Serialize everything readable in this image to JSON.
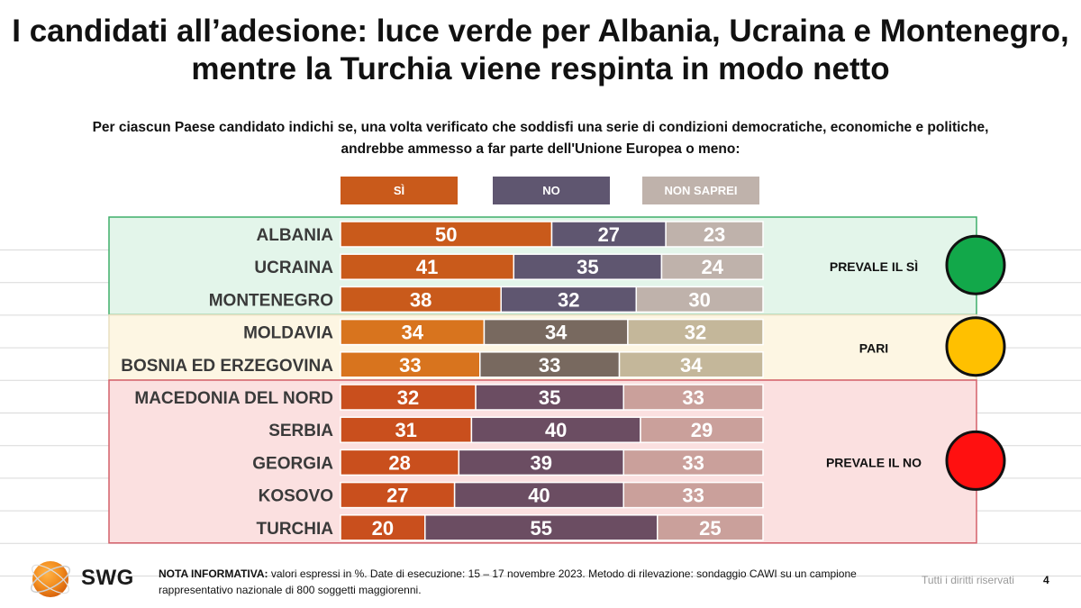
{
  "header": {
    "title_line1": "I candidati all’adesione: luce verde per Albania, Ucraina e Montenegro,",
    "title_line2": "mentre la Turchia viene respinta in modo netto",
    "question_line1": "Per ciascun Paese candidato indichi se, una volta verificato che soddisfi una serie di condizioni democratiche, economiche e politiche,",
    "question_line2": "andrebbe ammesso a far parte dell'Unione Europea o meno:"
  },
  "legend": {
    "si": "SÌ",
    "no": "NO",
    "non_saprei": "NON SAPREI"
  },
  "chart_data": {
    "type": "bar",
    "orientation": "horizontal-stacked-100",
    "categories": [
      "ALBANIA",
      "UCRAINA",
      "MONTENEGRO",
      "MOLDAVIA",
      "BOSNIA ED ERZEGOVINA",
      "MACEDONIA DEL NORD",
      "SERBIA",
      "GEORGIA",
      "KOSOVO",
      "TURCHIA"
    ],
    "series": [
      {
        "name": "SÌ",
        "values": [
          50,
          41,
          38,
          34,
          33,
          32,
          31,
          28,
          27,
          20
        ]
      },
      {
        "name": "NO",
        "values": [
          27,
          35,
          32,
          34,
          33,
          35,
          40,
          39,
          40,
          55
        ]
      },
      {
        "name": "NON SAPREI",
        "values": [
          23,
          24,
          30,
          32,
          34,
          33,
          29,
          33,
          33,
          25
        ]
      }
    ],
    "groups": [
      {
        "label": "PREVALE IL SÌ",
        "indicator": "green",
        "rows": [
          0,
          1,
          2
        ],
        "bg": "#e3f5ea",
        "border": "#3fae6a",
        "light": "#12a84a",
        "colors": [
          "#c95a1b",
          "#5f5670",
          "#bfb2ab"
        ]
      },
      {
        "label": "PARI",
        "indicator": "yellow",
        "rows": [
          3,
          4
        ],
        "bg": "#fdf6e3",
        "border": "#e9dfc0",
        "light": "#ffc000",
        "colors": [
          "#d8741e",
          "#78695f",
          "#c4b79a"
        ]
      },
      {
        "label": "PREVALE IL NO",
        "indicator": "red",
        "rows": [
          5,
          6,
          7,
          8,
          9
        ],
        "bg": "#fbe0e0",
        "border": "#d4606a",
        "light": "#ff1010",
        "colors": [
          "#c94f1d",
          "#6b4d62",
          "#caa09b"
        ]
      }
    ],
    "xlim": [
      0,
      100
    ],
    "unit": "%"
  },
  "colors": {
    "legend_si": "#c95a1b",
    "legend_no": "#5f5670",
    "legend_non_saprei": "#bfb2ab"
  },
  "footer": {
    "note_label": "NOTA INFORMATIVA:",
    "note_text": " valori espressi in %. Date di esecuzione: 15 – 17 novembre 2023. Metodo di rilevazione: sondaggio CAWI su un campione rappresentativo nazionale di 800 soggetti maggiorenni.",
    "rights": "Tutti i diritti riservati",
    "page_number": "4",
    "logo_text": "SWG"
  }
}
